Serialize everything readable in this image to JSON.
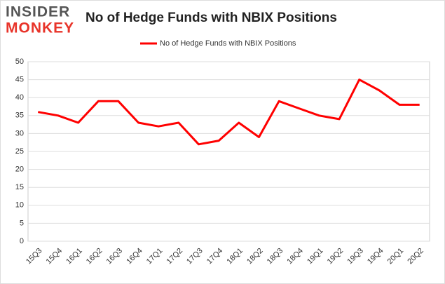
{
  "logo": {
    "line1": "INSIDER",
    "line2": "MONKEY"
  },
  "chart_data": {
    "type": "line",
    "title": "No of Hedge Funds with NBIX Positions",
    "categories": [
      "15Q3",
      "15Q4",
      "16Q1",
      "16Q2",
      "16Q3",
      "16Q4",
      "17Q1",
      "17Q2",
      "17Q3",
      "17Q4",
      "18Q1",
      "18Q2",
      "18Q3",
      "18Q4",
      "19Q1",
      "19Q2",
      "19Q3",
      "19Q4",
      "20Q1",
      "20Q2"
    ],
    "series": [
      {
        "name": "No of Hedge Funds with NBIX Positions",
        "color": "#ff0000",
        "values": [
          36,
          35,
          33,
          39,
          39,
          33,
          32,
          33,
          27,
          28,
          33,
          29,
          39,
          37,
          35,
          34,
          45,
          42,
          38,
          38
        ]
      }
    ],
    "ylim": [
      0,
      50
    ],
    "yticks": [
      0,
      5,
      10,
      15,
      20,
      25,
      30,
      35,
      40,
      45,
      50
    ],
    "grid": true,
    "legend": "top"
  }
}
